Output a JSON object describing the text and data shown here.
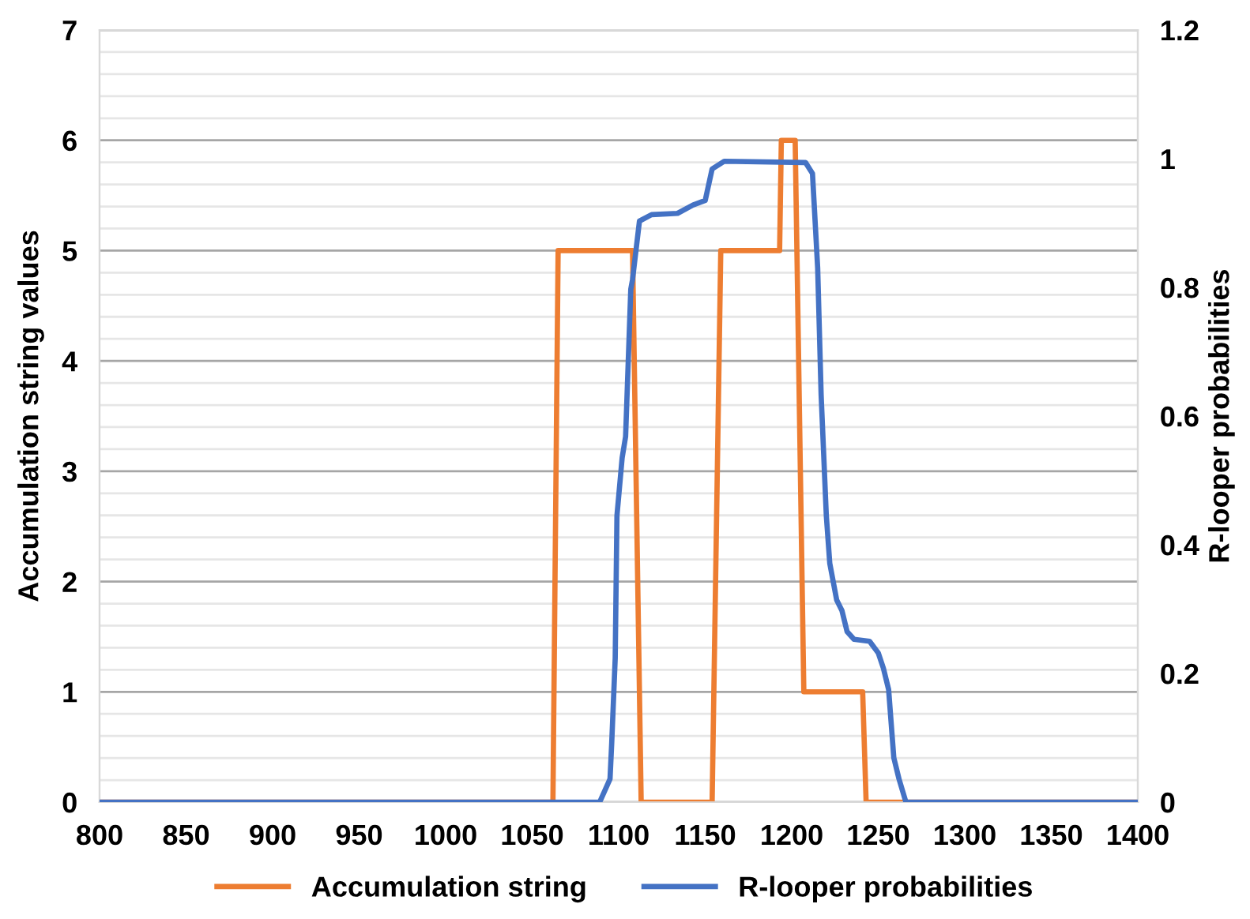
{
  "chart_data": {
    "type": "line",
    "xlabel": null,
    "ylabel": "Accumulation string values",
    "y2label": "R-looper probabilities",
    "xlim": [
      800,
      1400
    ],
    "xticks": [
      800,
      850,
      900,
      950,
      1000,
      1050,
      1100,
      1150,
      1200,
      1250,
      1300,
      1350,
      1400
    ],
    "ylim": [
      0,
      7
    ],
    "yticks": [
      0,
      1,
      2,
      3,
      4,
      5,
      6,
      7
    ],
    "y2lim": [
      0,
      1.2
    ],
    "y2ticks": [
      0,
      0.2,
      0.4,
      0.6,
      0.8,
      1,
      1.2
    ],
    "grid": "y",
    "legend": "bottom",
    "marker": "none",
    "line_style": "solid",
    "series": [
      {
        "name": "Accumulation string",
        "color": "#ed7d31",
        "x": [
          800,
          1062,
          1065,
          1108,
          1113,
          1154,
          1159,
          1193,
          1194,
          1202,
          1207,
          1241,
          1243,
          1400
        ],
        "values": [
          0,
          0,
          5,
          5,
          0,
          0,
          5,
          5,
          6,
          6,
          1,
          1,
          0,
          0
        ]
      },
      {
        "name": "R-looper probabilities",
        "color": "#4472c4",
        "axis": "y2",
        "x": [
          800,
          1089,
          1095,
          1096,
          1098,
          1099,
          1102,
          1104,
          1107,
          1108,
          1112,
          1119,
          1134,
          1143,
          1150,
          1154,
          1161,
          1208,
          1212,
          1215,
          1217,
          1220,
          1222,
          1226,
          1229,
          1232,
          1236,
          1245,
          1250,
          1253,
          1256,
          1259,
          1262,
          1266,
          1400
        ],
        "values": [
          0,
          0,
          0.036,
          0.093,
          0.224,
          0.445,
          0.535,
          0.568,
          0.797,
          0.812,
          0.903,
          0.913,
          0.915,
          0.928,
          0.935,
          0.984,
          0.996,
          0.994,
          0.977,
          0.83,
          0.633,
          0.445,
          0.371,
          0.314,
          0.298,
          0.265,
          0.253,
          0.25,
          0.232,
          0.208,
          0.175,
          0.069,
          0.036,
          0,
          0
        ]
      }
    ]
  }
}
